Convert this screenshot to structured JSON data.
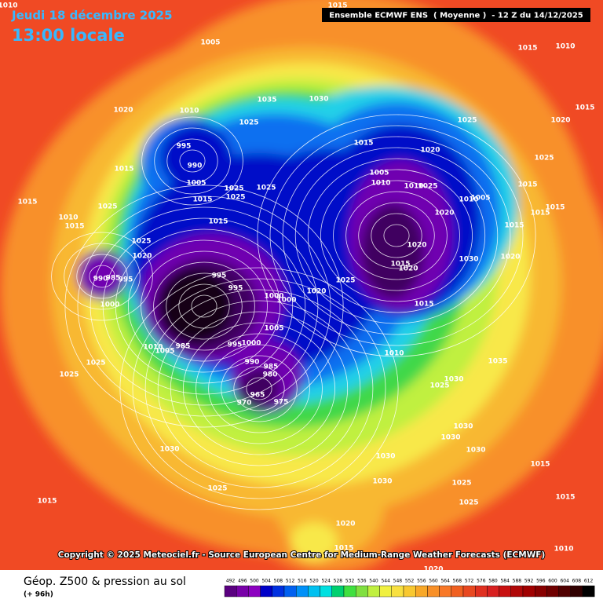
{
  "header": {
    "date": "Jeudi 18 décembre 2025",
    "time": "13:00 locale"
  },
  "model_info": "Ensemble ECMWF ENS  ( Moyenne )  - 12 Z du 14/12/2025",
  "copyright": "Copyright © 2025 Meteociel.fr - Source European Centre for Medium-Range Weather Forecasts (ECMWF)",
  "footer": {
    "title": "Géop. Z500 & pression au sol",
    "lead_time": "(+ 96h)"
  },
  "colorbar": {
    "ticks": [
      492,
      496,
      500,
      504,
      508,
      512,
      516,
      520,
      524,
      528,
      532,
      536,
      540,
      544,
      548,
      552,
      556,
      560,
      564,
      568,
      572,
      576,
      580,
      584,
      588,
      592,
      596,
      600,
      604,
      608,
      612
    ],
    "colors": [
      "#5a0080",
      "#7800a8",
      "#8c00c0",
      "#0000c8",
      "#0030e0",
      "#0060f0",
      "#0090f8",
      "#00c0f0",
      "#00e0e0",
      "#00d070",
      "#40e040",
      "#80e040",
      "#c0f040",
      "#f0f040",
      "#f8e040",
      "#f8c830",
      "#f8a828",
      "#f89028",
      "#f87828",
      "#f06020",
      "#e84820",
      "#e03020",
      "#d82020",
      "#c81010",
      "#b00808",
      "#a00000",
      "#880000",
      "#700000",
      "#500000",
      "#300000",
      "#000000"
    ]
  },
  "isobar_labels": [
    1010,
    1015,
    1005,
    1015,
    1010,
    1020,
    1010,
    1035,
    1030,
    1025,
    1025,
    1020,
    1015,
    995,
    1015,
    1020,
    1025,
    990,
    1005,
    1015,
    1005,
    1025,
    1025,
    1010,
    1010,
    1025,
    1015,
    1015,
    1015,
    1025,
    1025,
    1010,
    1005,
    1015,
    1010,
    1015,
    1020,
    1015,
    1015,
    1015,
    1025,
    1020,
    1030,
    1020,
    1020,
    1015,
    1020,
    995,
    1025,
    990,
    985,
    995,
    995,
    1020,
    1000,
    1000,
    1015,
    1000,
    1005,
    1010,
    1005,
    985,
    995,
    1000,
    1010,
    990,
    985,
    980,
    1035,
    1025,
    1025,
    965,
    970,
    975,
    1030,
    1025,
    1030,
    1030,
    1030,
    1030,
    1030,
    1015,
    1030,
    1025,
    1025,
    1015,
    1025,
    1015,
    1020,
    1015,
    1020,
    1010
  ]
}
